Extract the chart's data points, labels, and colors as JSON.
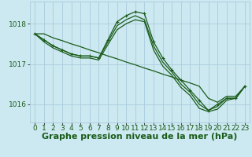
{
  "background_color": "#cce8f0",
  "grid_color": "#aaccdd",
  "line_color": "#1a5c1a",
  "xlabel": "Graphe pression niveau de la mer (hPa)",
  "xlabel_fontsize": 8,
  "tick_fontsize": 6.5,
  "xlim": [
    -0.5,
    23.5
  ],
  "ylim": [
    1015.55,
    1018.55
  ],
  "yticks": [
    1016,
    1017,
    1018
  ],
  "xticks": [
    0,
    1,
    2,
    3,
    4,
    5,
    6,
    7,
    8,
    9,
    10,
    11,
    12,
    13,
    14,
    15,
    16,
    17,
    18,
    19,
    20,
    21,
    22,
    23
  ],
  "series": [
    {
      "x": [
        0,
        1,
        2,
        3,
        4,
        5,
        6,
        7,
        8,
        9,
        10,
        11,
        12,
        13,
        14,
        15,
        16,
        17,
        18,
        19,
        20,
        21,
        22,
        23
      ],
      "y": [
        1017.75,
        1017.75,
        1017.65,
        1017.58,
        1017.5,
        1017.43,
        1017.35,
        1017.28,
        1017.2,
        1017.13,
        1017.05,
        1016.98,
        1016.9,
        1016.83,
        1016.75,
        1016.68,
        1016.6,
        1016.53,
        1016.45,
        1016.15,
        1016.05,
        1016.2,
        1016.2,
        1016.45
      ],
      "marker": false,
      "linewidth": 0.9
    },
    {
      "x": [
        0,
        1,
        2,
        3,
        4,
        5,
        6,
        7,
        8,
        9,
        10,
        11,
        12,
        13,
        14,
        15,
        16,
        17,
        18,
        19,
        20,
        21,
        22,
        23
      ],
      "y": [
        1017.75,
        1017.6,
        1017.45,
        1017.35,
        1017.25,
        1017.2,
        1017.2,
        1017.15,
        1017.6,
        1018.05,
        1018.2,
        1018.3,
        1018.25,
        1017.55,
        1017.15,
        1016.85,
        1016.6,
        1016.35,
        1016.1,
        1015.85,
        1016.0,
        1016.15,
        1016.15,
        1016.45
      ],
      "marker": true,
      "linewidth": 0.9
    },
    {
      "x": [
        0,
        1,
        2,
        3,
        4,
        5,
        6,
        7,
        8,
        9,
        10,
        11,
        12,
        13,
        14,
        15,
        16,
        17,
        18,
        19,
        20,
        21,
        22,
        23
      ],
      "y": [
        1017.75,
        1017.6,
        1017.45,
        1017.35,
        1017.25,
        1017.2,
        1017.2,
        1017.15,
        1017.55,
        1017.95,
        1018.1,
        1018.2,
        1018.1,
        1017.45,
        1017.05,
        1016.8,
        1016.5,
        1016.3,
        1016.0,
        1015.85,
        1015.95,
        1016.15,
        1016.15,
        1016.45
      ],
      "marker": false,
      "linewidth": 0.9
    },
    {
      "x": [
        0,
        1,
        2,
        3,
        4,
        5,
        6,
        7,
        8,
        9,
        10,
        11,
        12,
        13,
        14,
        15,
        16,
        17,
        18,
        19,
        20,
        21,
        22,
        23
      ],
      "y": [
        1017.75,
        1017.55,
        1017.4,
        1017.3,
        1017.2,
        1017.15,
        1017.15,
        1017.1,
        1017.48,
        1017.85,
        1018.0,
        1018.1,
        1018.05,
        1017.35,
        1016.95,
        1016.72,
        1016.42,
        1016.22,
        1015.9,
        1015.82,
        1015.88,
        1016.1,
        1016.15,
        1016.45
      ],
      "marker": false,
      "linewidth": 0.9
    }
  ]
}
